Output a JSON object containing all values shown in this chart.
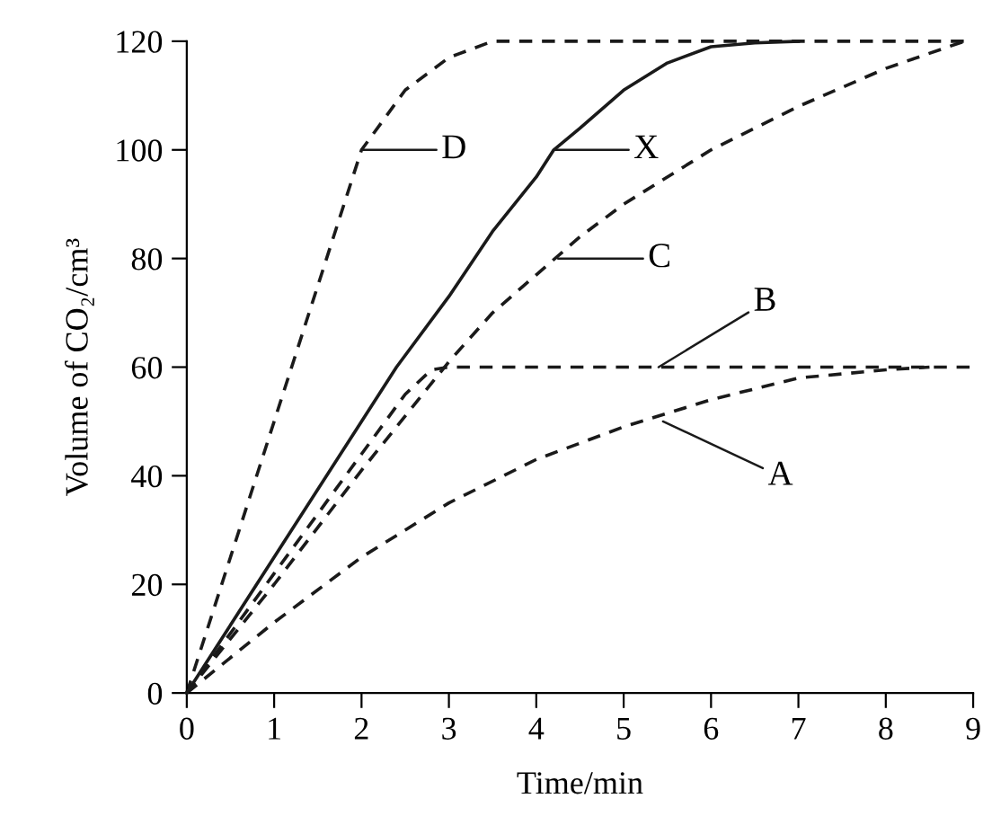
{
  "chart_data": {
    "type": "line",
    "xlabel": "Time/min",
    "ylabel": "Volume of CO₂/cm³",
    "xlim": [
      0,
      9
    ],
    "ylim": [
      0,
      120
    ],
    "xticks": [
      0,
      1,
      2,
      3,
      4,
      5,
      6,
      7,
      8,
      9
    ],
    "yticks": [
      0,
      20,
      40,
      60,
      80,
      100,
      120
    ],
    "grid": false,
    "legend": false,
    "marker": "none",
    "series": [
      {
        "color": "#1a1a1a",
        "line_style": "dashed",
        "x": [
          0,
          1,
          1.5,
          2,
          2.5,
          3,
          3.5,
          9
        ],
        "values": [
          0,
          50,
          75,
          100,
          111,
          117,
          120,
          120
        ]
      },
      {
        "color": "#1a1a1a",
        "line_style": "solid",
        "x": [
          0,
          1,
          2,
          2.4,
          3,
          3.5,
          4,
          4.2,
          4.5,
          5,
          5.5,
          6,
          6.5,
          7
        ],
        "values": [
          0,
          25,
          50,
          60,
          73,
          85,
          95,
          100,
          104,
          111,
          116,
          119,
          119.7,
          120
        ]
      },
      {
        "color": "#1a1a1a",
        "line_style": "dashed",
        "x": [
          0,
          1,
          2,
          3,
          3.5,
          4,
          4.5,
          5,
          6,
          7,
          8,
          8.9
        ],
        "values": [
          0,
          20,
          41,
          61,
          70,
          77,
          84,
          90,
          100,
          108,
          115,
          120
        ]
      },
      {
        "color": "#1a1a1a",
        "line_style": "dashed",
        "x": [
          0,
          1,
          2,
          2.5,
          2.8,
          3,
          9
        ],
        "values": [
          0,
          22,
          44,
          55,
          59.5,
          60,
          60
        ]
      },
      {
        "color": "#1a1a1a",
        "line_style": "dashed",
        "x": [
          0,
          1,
          2,
          3,
          4,
          5,
          6,
          7,
          8,
          8.5
        ],
        "values": [
          0,
          13,
          25,
          35,
          43,
          49,
          54,
          58,
          59.5,
          60
        ]
      }
    ],
    "annotations": [
      {
        "text": "D",
        "x": 2,
        "y": 100
      },
      {
        "text": "X",
        "x": 4.2,
        "y": 100
      },
      {
        "text": "C",
        "x": 4.25,
        "y": 80
      },
      {
        "text": "B",
        "x": 5.4,
        "y": 60
      },
      {
        "text": "A",
        "x": 5.45,
        "y": 50
      }
    ]
  }
}
